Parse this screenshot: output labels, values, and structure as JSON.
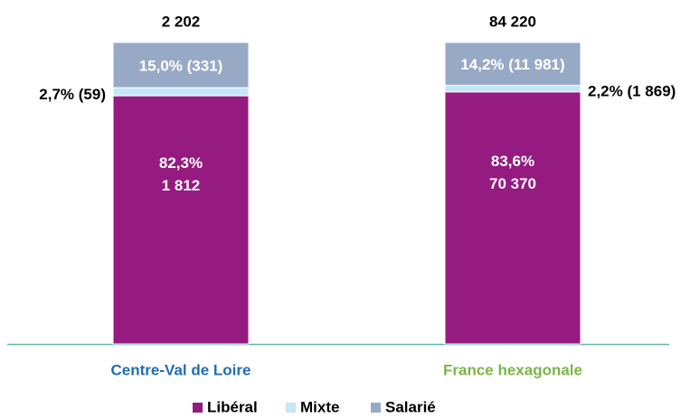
{
  "chart_data": {
    "type": "stacked_bar_100",
    "categories": [
      "Centre-Val de Loire",
      "France hexagonale"
    ],
    "category_colors": [
      "#1f6db3",
      "#7ab648"
    ],
    "totals": [
      2202,
      84220
    ],
    "total_labels": [
      "2 202",
      "84 220"
    ],
    "series": [
      {
        "name": "Libéral",
        "color": "#951b81",
        "values": [
          82.3,
          83.6
        ],
        "value_labels": [
          "82,3%",
          "83,6%"
        ],
        "counts": [
          1812,
          70370
        ],
        "count_labels": [
          "1 812",
          "70 370"
        ]
      },
      {
        "name": "Mixte",
        "color": "#c5e6f6",
        "values": [
          2.7,
          2.2
        ],
        "value_labels": [
          "2,7% (59)",
          "2,2% (1 869)"
        ]
      },
      {
        "name": "Salarié",
        "color": "#98a9c6",
        "values": [
          15.0,
          14.2
        ],
        "value_labels": [
          "15,0% (331)",
          "14,2% (11 981)"
        ]
      }
    ],
    "ylim": [
      0,
      100
    ]
  }
}
